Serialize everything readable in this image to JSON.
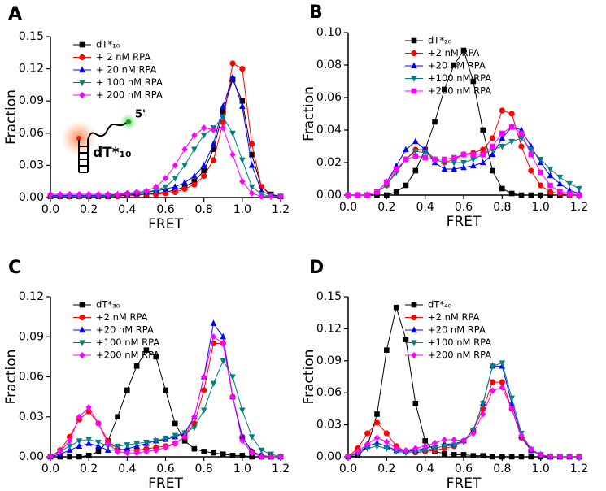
{
  "chart_data": [
    {
      "type": "line",
      "label": "A",
      "xlabel": "FRET",
      "ylabel": "Fraction",
      "legend": "upper left",
      "annotations": [
        "5'",
        "dT*₁₀"
      ],
      "xlim": [
        0,
        1.2
      ],
      "xticks": [
        {
          "value": 0,
          "label": "0.0"
        },
        0.2,
        0.4,
        0.6,
        0.8,
        {
          "value": 1,
          "label": "1.0"
        },
        1.2
      ],
      "ylim": [
        0,
        0.15
      ],
      "yticks": [
        {
          "value": 0,
          "label": "0.00"
        },
        0.03,
        0.06,
        0.09,
        0.12,
        0.15
      ],
      "x": [
        0,
        0.05,
        0.1,
        0.15,
        0.2,
        0.25,
        0.3,
        0.35,
        0.4,
        0.45,
        0.5,
        0.55,
        0.6,
        0.65,
        0.7,
        0.75,
        0.8,
        0.85,
        0.9,
        0.95,
        1,
        1.05,
        1.1,
        1.15,
        1.2
      ],
      "series": [
        {
          "name": "dT*₁₀",
          "color": "#000000",
          "marker": "square",
          "values": [
            0.001,
            0.001,
            0.001,
            0.001,
            0.001,
            0.001,
            0.001,
            0.002,
            0.002,
            0.003,
            0.003,
            0.004,
            0.005,
            0.007,
            0.01,
            0.015,
            0.025,
            0.045,
            0.08,
            0.11,
            0.09,
            0.04,
            0.01,
            0.003,
            0.001
          ]
        },
        {
          "name": "+ 2 nM RPA",
          "color": "#ff0000",
          "marker": "circle",
          "values": [
            0.001,
            0.001,
            0.001,
            0.001,
            0.001,
            0.001,
            0.001,
            0.001,
            0.002,
            0.002,
            0.003,
            0.003,
            0.004,
            0.005,
            0.008,
            0.012,
            0.02,
            0.035,
            0.07,
            0.125,
            0.12,
            0.05,
            0.01,
            0.002,
            0.001
          ]
        },
        {
          "name": "+ 20 nM RPA",
          "color": "#0000ff",
          "marker": "triangle-up",
          "values": [
            0.002,
            0.002,
            0.002,
            0.002,
            0.002,
            0.002,
            0.002,
            0.003,
            0.003,
            0.004,
            0.005,
            0.006,
            0.008,
            0.01,
            0.014,
            0.02,
            0.03,
            0.05,
            0.085,
            0.112,
            0.085,
            0.03,
            0.006,
            0.002,
            0.001
          ]
        },
        {
          "name": "+ 100 nM RPA",
          "color": "#008080",
          "marker": "triangle-down",
          "values": [
            0.001,
            0.001,
            0.001,
            0.001,
            0.001,
            0.001,
            0.002,
            0.002,
            0.003,
            0.004,
            0.005,
            0.007,
            0.01,
            0.018,
            0.03,
            0.045,
            0.058,
            0.065,
            0.075,
            0.06,
            0.035,
            0.01,
            0.003,
            0.001,
            0.001
          ]
        },
        {
          "name": "+ 200 nM RPA",
          "color": "#ff00ff",
          "marker": "diamond",
          "values": [
            0.003,
            0.003,
            0.003,
            0.003,
            0.003,
            0.003,
            0.003,
            0.003,
            0.004,
            0.005,
            0.006,
            0.01,
            0.018,
            0.03,
            0.045,
            0.058,
            0.065,
            0.063,
            0.065,
            0.04,
            0.015,
            0.004,
            0.001,
            0.001,
            0.001
          ]
        }
      ]
    },
    {
      "type": "line",
      "label": "B",
      "xlabel": "FRET",
      "ylabel": "Fraction",
      "legend": "upper right",
      "xlim": [
        0,
        1.2
      ],
      "xticks": [
        {
          "value": 0,
          "label": "0.0"
        },
        0.2,
        0.4,
        0.6,
        0.8,
        {
          "value": 1,
          "label": "1.0"
        },
        1.2
      ],
      "ylim": [
        0,
        0.1
      ],
      "yticks": [
        {
          "value": 0,
          "label": "0.00"
        },
        0.02,
        0.04,
        0.06,
        0.08,
        {
          "value": 0.1,
          "label": "0.10"
        }
      ],
      "x": [
        0,
        0.05,
        0.1,
        0.15,
        0.2,
        0.25,
        0.3,
        0.35,
        0.4,
        0.45,
        0.5,
        0.55,
        0.6,
        0.65,
        0.7,
        0.75,
        0.8,
        0.85,
        0.9,
        0.95,
        1,
        1.05,
        1.1,
        1.15,
        1.2
      ],
      "series": [
        {
          "name": "dT*₂₀",
          "color": "#000000",
          "marker": "square",
          "values": [
            0,
            0,
            0,
            0,
            0,
            0.002,
            0.006,
            0.015,
            0.028,
            0.045,
            0.065,
            0.08,
            0.089,
            0.07,
            0.04,
            0.015,
            0.004,
            0.001,
            0,
            0,
            0,
            0,
            0,
            0,
            0
          ]
        },
        {
          "name": "+2 nM RPA",
          "color": "#ff0000",
          "marker": "circle",
          "values": [
            0,
            0,
            0,
            0.002,
            0.006,
            0.015,
            0.022,
            0.028,
            0.028,
            0.022,
            0.02,
            0.022,
            0.025,
            0.026,
            0.028,
            0.035,
            0.052,
            0.05,
            0.03,
            0.015,
            0.006,
            0.002,
            0.001,
            0,
            0
          ]
        },
        {
          "name": "+20 nM RPA",
          "color": "#0000ff",
          "marker": "triangle-up",
          "values": [
            0,
            0,
            0,
            0.002,
            0.008,
            0.018,
            0.028,
            0.033,
            0.028,
            0.02,
            0.016,
            0.016,
            0.017,
            0.018,
            0.02,
            0.025,
            0.035,
            0.042,
            0.04,
            0.03,
            0.02,
            0.012,
            0.007,
            0.003,
            0.001
          ]
        },
        {
          "name": "+100 nM RPA",
          "color": "#008080",
          "marker": "triangle-down",
          "values": [
            0,
            0,
            0,
            0.002,
            0.006,
            0.014,
            0.022,
            0.027,
            0.026,
            0.022,
            0.02,
            0.02,
            0.02,
            0.022,
            0.025,
            0.028,
            0.03,
            0.033,
            0.035,
            0.028,
            0.022,
            0.016,
            0.011,
            0.007,
            0.004
          ]
        },
        {
          "name": "+200 nM RPA",
          "color": "#ff00ff",
          "marker": "square",
          "values": [
            0,
            0,
            0,
            0.002,
            0.008,
            0.016,
            0.022,
            0.024,
            0.023,
            0.022,
            0.022,
            0.023,
            0.025,
            0.025,
            0.025,
            0.03,
            0.038,
            0.042,
            0.038,
            0.025,
            0.014,
            0.006,
            0.002,
            0.001,
            0
          ]
        }
      ]
    },
    {
      "type": "line",
      "label": "C",
      "xlabel": "FRET",
      "ylabel": "Fraction",
      "legend": "upper left",
      "xlim": [
        0,
        1.2
      ],
      "xticks": [
        {
          "value": 0,
          "label": "0.0"
        },
        0.2,
        0.4,
        0.6,
        0.8,
        {
          "value": 1,
          "label": "1.0"
        },
        1.2
      ],
      "ylim": [
        0,
        0.12
      ],
      "yticks": [
        {
          "value": 0,
          "label": "0.00"
        },
        0.03,
        0.06,
        0.09,
        0.12
      ],
      "x": [
        0,
        0.05,
        0.1,
        0.15,
        0.2,
        0.25,
        0.3,
        0.35,
        0.4,
        0.45,
        0.5,
        0.55,
        0.6,
        0.65,
        0.7,
        0.75,
        0.8,
        0.85,
        0.9,
        0.95,
        1,
        1.05,
        1.1,
        1.15,
        1.2
      ],
      "series": [
        {
          "name": "dT*₃₀",
          "color": "#000000",
          "marker": "square",
          "values": [
            0,
            0,
            0,
            0,
            0.001,
            0.004,
            0.012,
            0.03,
            0.05,
            0.068,
            0.08,
            0.075,
            0.05,
            0.025,
            0.012,
            0.006,
            0.004,
            0.003,
            0.002,
            0.001,
            0.001,
            0,
            0,
            0,
            0
          ]
        },
        {
          "name": "+2 nM RPA",
          "color": "#ff0000",
          "marker": "circle",
          "values": [
            0,
            0.005,
            0.015,
            0.028,
            0.034,
            0.025,
            0.012,
            0.006,
            0.005,
            0.005,
            0.006,
            0.007,
            0.008,
            0.01,
            0.015,
            0.025,
            0.05,
            0.085,
            0.085,
            0.045,
            0.015,
            0.004,
            0.001,
            0,
            0
          ]
        },
        {
          "name": "+20 nM RPA",
          "color": "#0000ff",
          "marker": "triangle-up",
          "values": [
            0,
            0.002,
            0.005,
            0.008,
            0.01,
            0.008,
            0.005,
            0.005,
            0.006,
            0.008,
            0.01,
            0.012,
            0.013,
            0.015,
            0.018,
            0.03,
            0.06,
            0.1,
            0.09,
            0.045,
            0.015,
            0.004,
            0.001,
            0,
            0
          ]
        },
        {
          "name": "+100 nM RPA",
          "color": "#008080",
          "marker": "triangle-down",
          "values": [
            0,
            0.004,
            0.008,
            0.012,
            0.013,
            0.011,
            0.008,
            0.008,
            0.009,
            0.01,
            0.011,
            0.012,
            0.014,
            0.016,
            0.018,
            0.022,
            0.035,
            0.055,
            0.072,
            0.06,
            0.035,
            0.015,
            0.005,
            0.002,
            0
          ]
        },
        {
          "name": "+200 nM RPA",
          "color": "#ff00ff",
          "marker": "diamond",
          "values": [
            0,
            0.004,
            0.012,
            0.03,
            0.037,
            0.025,
            0.01,
            0.004,
            0.003,
            0.003,
            0.004,
            0.005,
            0.007,
            0.01,
            0.015,
            0.03,
            0.06,
            0.09,
            0.085,
            0.045,
            0.012,
            0.003,
            0,
            0,
            0
          ]
        }
      ]
    },
    {
      "type": "line",
      "label": "D",
      "xlabel": "FRET",
      "ylabel": "Fraction",
      "legend": "upper right",
      "xlim": [
        0,
        1.2
      ],
      "xticks": [
        {
          "value": 0,
          "label": "0.0"
        },
        0.2,
        0.4,
        0.6,
        0.8,
        {
          "value": 1,
          "label": "1.0"
        },
        1.2
      ],
      "ylim": [
        0,
        0.15
      ],
      "yticks": [
        {
          "value": 0,
          "label": "0.00"
        },
        0.03,
        0.06,
        0.09,
        0.12,
        0.15
      ],
      "x": [
        0,
        0.05,
        0.1,
        0.15,
        0.2,
        0.25,
        0.3,
        0.35,
        0.4,
        0.45,
        0.5,
        0.55,
        0.6,
        0.65,
        0.7,
        0.75,
        0.8,
        0.85,
        0.9,
        0.95,
        1,
        1.05,
        1.1,
        1.15,
        1.2
      ],
      "series": [
        {
          "name": "dT*₄₀",
          "color": "#000000",
          "marker": "square",
          "values": [
            0,
            0.001,
            0.01,
            0.04,
            0.1,
            0.14,
            0.11,
            0.05,
            0.015,
            0.005,
            0.003,
            0.002,
            0.002,
            0.001,
            0.001,
            0,
            0,
            0,
            0,
            0,
            0,
            0,
            0,
            0,
            0
          ]
        },
        {
          "name": "+2 nM RPA",
          "color": "#ff0000",
          "marker": "circle",
          "values": [
            0,
            0.008,
            0.022,
            0.032,
            0.022,
            0.01,
            0.005,
            0.004,
            0.005,
            0.006,
            0.008,
            0.01,
            0.015,
            0.025,
            0.045,
            0.07,
            0.07,
            0.045,
            0.018,
            0.006,
            0.002,
            0,
            0,
            0,
            0
          ]
        },
        {
          "name": "+20 nM RPA",
          "color": "#0000ff",
          "marker": "triangle-up",
          "values": [
            0,
            0.004,
            0.01,
            0.013,
            0.01,
            0.006,
            0.005,
            0.006,
            0.008,
            0.01,
            0.012,
            0.012,
            0.015,
            0.025,
            0.05,
            0.085,
            0.085,
            0.05,
            0.02,
            0.006,
            0.002,
            0,
            0,
            0,
            0
          ]
        },
        {
          "name": "+100 nM RPA",
          "color": "#008080",
          "marker": "triangle-down",
          "values": [
            0,
            0.003,
            0.008,
            0.01,
            0.008,
            0.005,
            0.004,
            0.005,
            0.006,
            0.008,
            0.01,
            0.011,
            0.014,
            0.025,
            0.05,
            0.085,
            0.088,
            0.055,
            0.022,
            0.007,
            0.002,
            0,
            0,
            0,
            0
          ]
        },
        {
          "name": "+200 nM RPA",
          "color": "#ff00ff",
          "marker": "diamond",
          "values": [
            0,
            0.005,
            0.012,
            0.018,
            0.014,
            0.008,
            0.006,
            0.008,
            0.01,
            0.013,
            0.016,
            0.016,
            0.015,
            0.022,
            0.04,
            0.062,
            0.065,
            0.045,
            0.02,
            0.007,
            0.002,
            0,
            0,
            0,
            0
          ]
        }
      ]
    }
  ]
}
